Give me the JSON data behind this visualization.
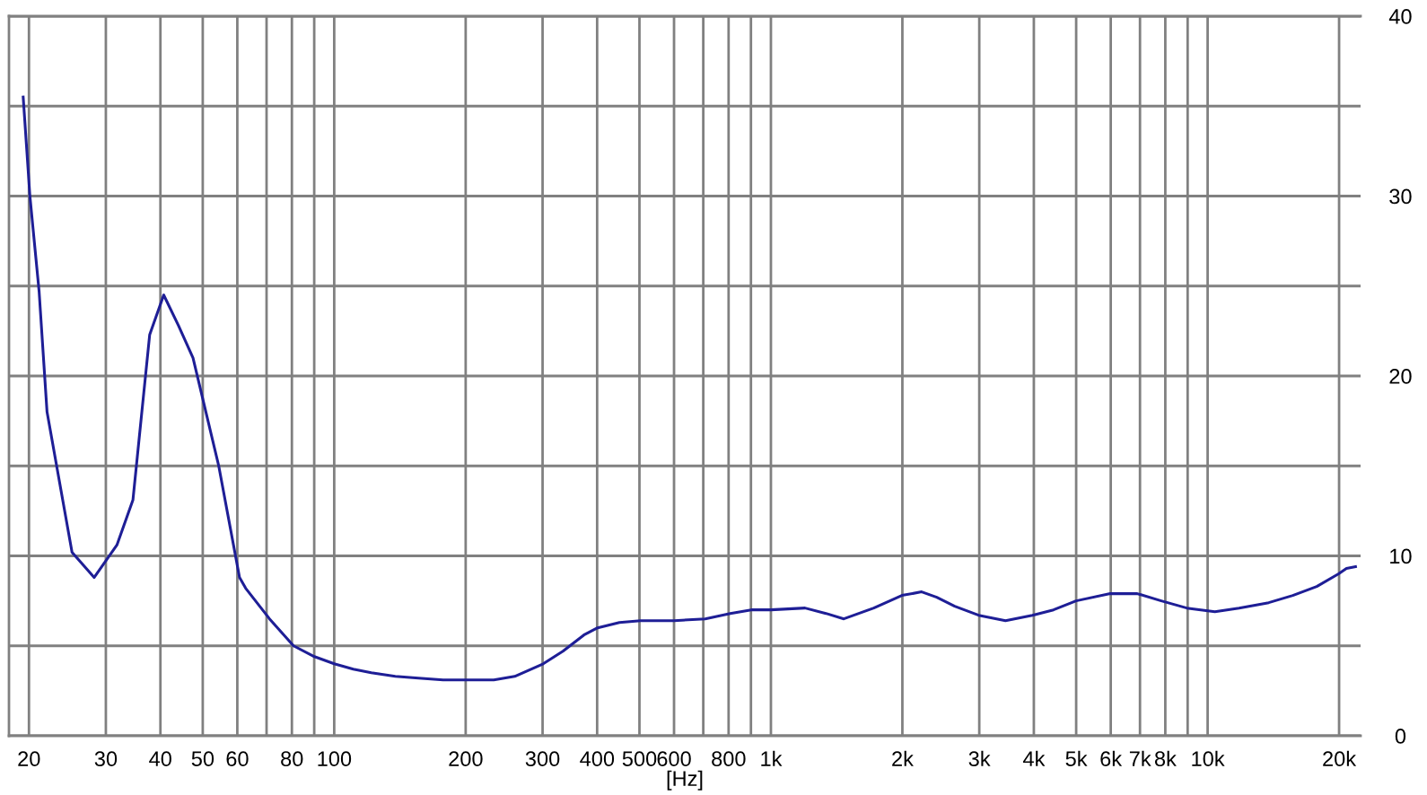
{
  "chart_data": {
    "type": "line",
    "xlabel": "[Hz]",
    "log": "x",
    "grid": true,
    "line_style": "solid",
    "xlim": [
      18,
      22400
    ],
    "ylim": [
      0,
      40
    ],
    "xticks": [
      20,
      30,
      40,
      50,
      60,
      {
        "value": 70,
        "label": null
      },
      80,
      {
        "value": 90,
        "label": null
      },
      100,
      200,
      300,
      400,
      500,
      600,
      {
        "value": 700,
        "label": null
      },
      800,
      {
        "value": 900,
        "label": null
      },
      {
        "value": 1000,
        "label": "1k"
      },
      {
        "value": 2000,
        "label": "2k"
      },
      {
        "value": 3000,
        "label": "3k"
      },
      {
        "value": 4000,
        "label": "4k"
      },
      {
        "value": 5000,
        "label": "5k"
      },
      {
        "value": 6000,
        "label": "6k"
      },
      {
        "value": 7000,
        "label": "7k"
      },
      {
        "value": 8000,
        "label": "8k"
      },
      {
        "value": 9000,
        "label": null
      },
      {
        "value": 10000,
        "label": "10k"
      },
      {
        "value": 20000,
        "label": "20k"
      }
    ],
    "yticks": [
      0,
      {
        "value": 5,
        "label": null
      },
      10,
      {
        "value": 15,
        "label": null
      },
      20,
      {
        "value": 25,
        "label": null
      },
      30,
      {
        "value": 35,
        "label": null
      },
      40
    ],
    "series": [
      {
        "color": "#1e1e96",
        "x": [
          19.4,
          20.1,
          21.1,
          22.0,
          25.1,
          28.2,
          31.8,
          34.6,
          37.8,
          40.7,
          44.0,
          47.5,
          54.4,
          60.7,
          62.7,
          71.1,
          80.7,
          90.1,
          100,
          110.6,
          121.6,
          138,
          156,
          177.6,
          200,
          232,
          259,
          301,
          334,
          373,
          401,
          450,
          503,
          600,
          707,
          807,
          901,
          1000,
          1197,
          1337,
          1469,
          1720,
          1995,
          2214,
          2397,
          2635,
          2990,
          3445,
          3970,
          4436,
          5000,
          5985,
          6900,
          7830,
          8960,
          10390,
          11800,
          13800,
          15670,
          17780,
          19950,
          20790,
          21810
        ],
        "values": [
          35.5,
          30.0,
          24.7,
          18.0,
          10.2,
          8.8,
          10.6,
          13.1,
          22.3,
          24.5,
          22.8,
          21.0,
          15.0,
          8.8,
          8.2,
          6.5,
          5.0,
          4.4,
          4.0,
          3.7,
          3.5,
          3.3,
          3.2,
          3.1,
          3.1,
          3.1,
          3.3,
          4.0,
          4.7,
          5.6,
          6.0,
          6.3,
          6.4,
          6.4,
          6.5,
          6.8,
          7.0,
          7.0,
          7.1,
          6.8,
          6.5,
          7.1,
          7.8,
          8.0,
          7.7,
          7.2,
          6.7,
          6.4,
          6.7,
          7.0,
          7.5,
          7.9,
          7.9,
          7.5,
          7.1,
          6.9,
          7.1,
          7.4,
          7.8,
          8.3,
          9.0,
          9.3,
          9.4
        ]
      }
    ]
  }
}
